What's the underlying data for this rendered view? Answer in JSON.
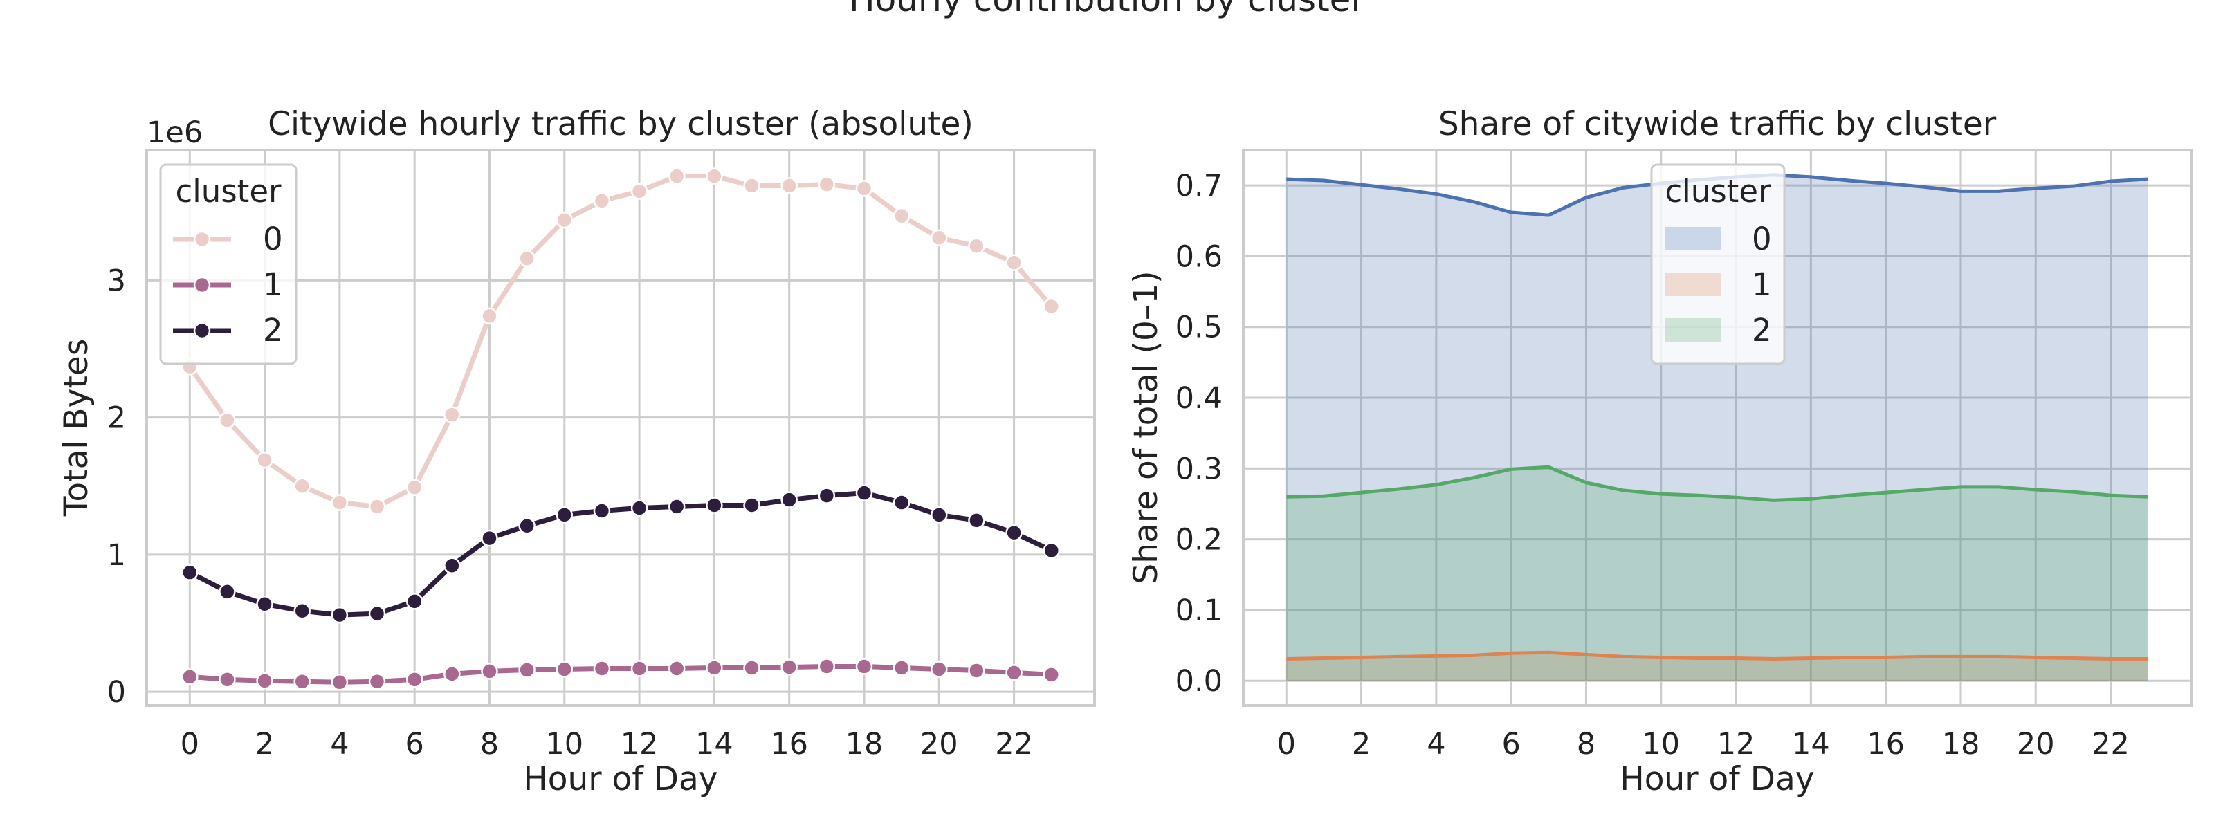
{
  "suptitle": "Hourly contribution by cluster",
  "chart_data": [
    {
      "type": "line",
      "title": "Citywide hourly traffic by cluster (absolute)",
      "xlabel": "Hour of Day",
      "ylabel": "Total Bytes",
      "y_scale_label": "1e6",
      "x": [
        0,
        1,
        2,
        3,
        4,
        5,
        6,
        7,
        8,
        9,
        10,
        11,
        12,
        13,
        14,
        15,
        16,
        17,
        18,
        19,
        20,
        21,
        22,
        23
      ],
      "xticks": [
        0,
        2,
        4,
        6,
        8,
        10,
        12,
        14,
        16,
        18,
        20,
        22
      ],
      "xlim": [
        -1.15,
        24.15
      ],
      "yticks": [
        0,
        1,
        2,
        3
      ],
      "ylim": [
        -0.1,
        3.95
      ],
      "grid": true,
      "legend": {
        "title": "cluster",
        "position": "top-left"
      },
      "series": [
        {
          "name": "0",
          "color": "#ebcec9",
          "values": [
            2.37,
            1.98,
            1.69,
            1.5,
            1.38,
            1.35,
            1.49,
            2.02,
            2.74,
            3.16,
            3.44,
            3.58,
            3.65,
            3.76,
            3.76,
            3.69,
            3.69,
            3.7,
            3.67,
            3.47,
            3.31,
            3.25,
            3.13,
            2.81
          ]
        },
        {
          "name": "1",
          "color": "#a8688f",
          "values": [
            0.11,
            0.09,
            0.08,
            0.075,
            0.07,
            0.075,
            0.09,
            0.13,
            0.15,
            0.16,
            0.165,
            0.17,
            0.17,
            0.17,
            0.175,
            0.175,
            0.18,
            0.185,
            0.185,
            0.175,
            0.165,
            0.155,
            0.14,
            0.125
          ]
        },
        {
          "name": "2",
          "color": "#2d1e3e",
          "values": [
            0.87,
            0.73,
            0.64,
            0.59,
            0.56,
            0.57,
            0.66,
            0.92,
            1.12,
            1.21,
            1.29,
            1.32,
            1.34,
            1.35,
            1.36,
            1.36,
            1.4,
            1.43,
            1.45,
            1.38,
            1.29,
            1.25,
            1.16,
            1.03
          ]
        }
      ]
    },
    {
      "type": "area",
      "title": "Share of citywide traffic by cluster",
      "xlabel": "Hour of Day",
      "ylabel": "Share of total (0–1)",
      "x": [
        0,
        1,
        2,
        3,
        4,
        5,
        6,
        7,
        8,
        9,
        10,
        11,
        12,
        13,
        14,
        15,
        16,
        17,
        18,
        19,
        20,
        21,
        22,
        23
      ],
      "xticks": [
        0,
        2,
        4,
        6,
        8,
        10,
        12,
        14,
        16,
        18,
        20,
        22
      ],
      "xlim": [
        -1.15,
        24.15
      ],
      "yticks": [
        0.0,
        0.1,
        0.2,
        0.3,
        0.4,
        0.5,
        0.6,
        0.7
      ],
      "ylim": [
        -0.035,
        0.75
      ],
      "grid": true,
      "legend": {
        "title": "cluster",
        "position": "upper-center"
      },
      "series": [
        {
          "name": "0",
          "color": "#4c72b0",
          "values": [
            0.709,
            0.707,
            0.701,
            0.695,
            0.688,
            0.677,
            0.662,
            0.658,
            0.683,
            0.697,
            0.703,
            0.708,
            0.712,
            0.715,
            0.712,
            0.707,
            0.703,
            0.698,
            0.692,
            0.692,
            0.696,
            0.699,
            0.706,
            0.709
          ]
        },
        {
          "name": "1",
          "color": "#dd8452",
          "values": [
            0.031,
            0.032,
            0.033,
            0.034,
            0.035,
            0.036,
            0.039,
            0.04,
            0.037,
            0.034,
            0.033,
            0.032,
            0.032,
            0.031,
            0.032,
            0.033,
            0.033,
            0.034,
            0.034,
            0.034,
            0.033,
            0.032,
            0.031,
            0.031
          ]
        },
        {
          "name": "2",
          "color": "#55a868",
          "values": [
            0.26,
            0.261,
            0.266,
            0.271,
            0.277,
            0.287,
            0.299,
            0.302,
            0.28,
            0.269,
            0.264,
            0.262,
            0.259,
            0.255,
            0.257,
            0.262,
            0.266,
            0.27,
            0.274,
            0.274,
            0.27,
            0.267,
            0.262,
            0.26
          ]
        }
      ]
    }
  ]
}
